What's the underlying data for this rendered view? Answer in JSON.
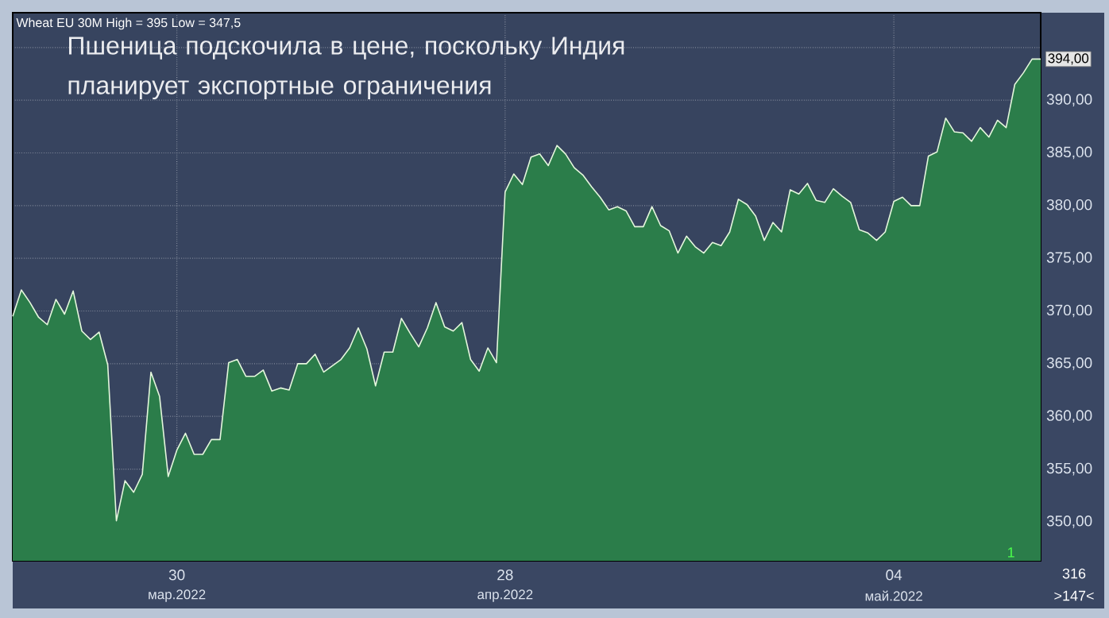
{
  "chart_data": {
    "type": "area",
    "title": "Пшеница подскочила в цене, поскольку Индия планирует экспортные ограничения",
    "subtitle": "Wheat EU 30M High = 395 Low = 347,5",
    "annotations": [
      "мар.2022",
      "апр.2022",
      "май.2022",
      "316",
      ">147<",
      "1",
      "394,00"
    ],
    "categories": [
      null,
      null,
      null,
      null,
      null,
      null,
      null,
      null,
      null,
      null,
      null,
      null,
      null,
      null,
      null,
      null,
      null,
      null,
      null,
      "30",
      null,
      null,
      null,
      null,
      null,
      null,
      null,
      null,
      null,
      null,
      null,
      null,
      null,
      null,
      null,
      null,
      null,
      null,
      null,
      null,
      null,
      null,
      null,
      null,
      null,
      null,
      null,
      null,
      null,
      null,
      null,
      null,
      null,
      null,
      null,
      null,
      null,
      "28",
      null,
      null,
      null,
      null,
      null,
      null,
      null,
      null,
      null,
      null,
      null,
      null,
      null,
      null,
      null,
      null,
      null,
      null,
      null,
      null,
      null,
      null,
      null,
      null,
      null,
      null,
      null,
      null,
      null,
      null,
      null,
      null,
      null,
      null,
      null,
      null,
      null,
      null,
      null,
      null,
      null,
      null,
      null,
      null,
      "04",
      null,
      null,
      null,
      null,
      null,
      null,
      null,
      null,
      null,
      null,
      null,
      null,
      null,
      null,
      null,
      null,
      null
    ],
    "series": [
      {
        "color": "#2b7d4a",
        "values": [
          369.5,
          372.0,
          370.8,
          369.4,
          368.7,
          371.1,
          369.7,
          371.9,
          368.1,
          367.3,
          368.0,
          364.9,
          350.1,
          353.9,
          352.8,
          354.5,
          364.2,
          361.9,
          354.3,
          356.8,
          358.4,
          356.4,
          356.4,
          357.8,
          357.8,
          365.1,
          365.4,
          363.8,
          363.8,
          364.4,
          362.4,
          362.7,
          362.5,
          365.0,
          365.0,
          365.9,
          364.2,
          364.8,
          365.4,
          366.5,
          368.4,
          366.4,
          362.9,
          366.1,
          366.1,
          369.3,
          367.9,
          366.6,
          368.4,
          370.8,
          368.5,
          368.1,
          368.9,
          365.4,
          364.3,
          366.5,
          365.1,
          381.3,
          383.0,
          382.0,
          384.6,
          384.9,
          383.8,
          385.7,
          384.9,
          383.6,
          382.9,
          381.8,
          380.8,
          379.6,
          379.9,
          379.5,
          378.0,
          378.0,
          379.9,
          378.1,
          377.6,
          375.5,
          377.1,
          376.1,
          375.5,
          376.5,
          376.2,
          377.5,
          380.6,
          380.1,
          379.0,
          376.7,
          378.4,
          377.5,
          381.5,
          381.1,
          382.1,
          380.5,
          380.3,
          381.6,
          380.9,
          380.3,
          377.7,
          377.4,
          376.7,
          377.5,
          380.4,
          380.8,
          380.0,
          380.0,
          384.7,
          385.1,
          388.3,
          387.0,
          386.9,
          386.1,
          387.4,
          386.5,
          388.1,
          387.4,
          391.5,
          392.6,
          393.9,
          393.9
        ]
      }
    ],
    "ylim": [
      346.3,
      398.3
    ],
    "yticks": [
      {
        "value": 350,
        "label": "350,00"
      },
      {
        "value": 355,
        "label": "355,00"
      },
      {
        "value": 360,
        "label": "360,00"
      },
      {
        "value": 365,
        "label": "365,00"
      },
      {
        "value": 370,
        "label": "370,00"
      },
      {
        "value": 375,
        "label": "375,00"
      },
      {
        "value": 380,
        "label": "380,00"
      },
      {
        "value": 385,
        "label": "385,00"
      },
      {
        "value": 390,
        "label": "390,00"
      },
      {
        "value": 395,
        "label": null
      }
    ],
    "grid": true
  }
}
